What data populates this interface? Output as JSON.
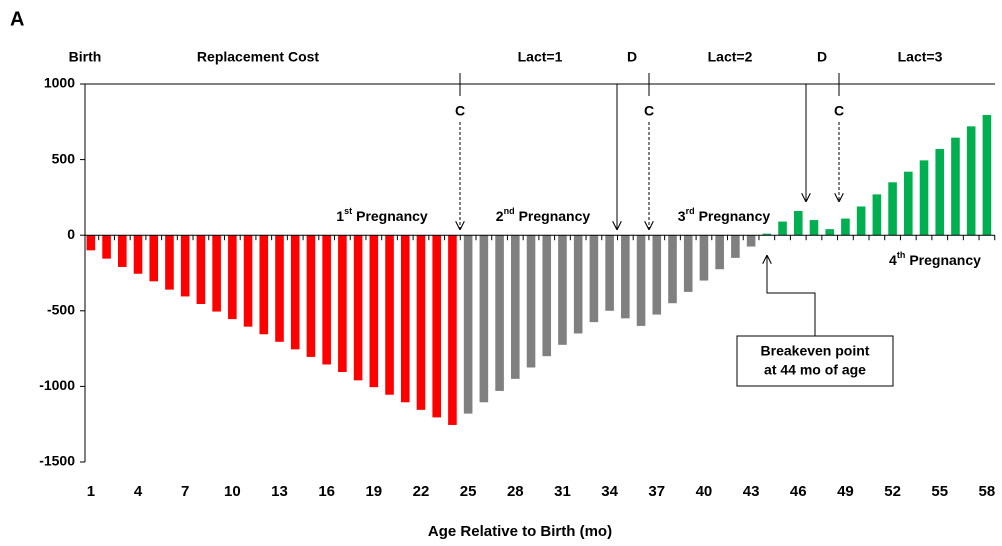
{
  "chart_data": {
    "type": "bar",
    "panel_label": "A",
    "xlabel": "Age Relative to Birth (mo)",
    "categories": [
      "1",
      null,
      null,
      "4",
      null,
      null,
      "7",
      null,
      null,
      "10",
      null,
      null,
      "13",
      null,
      null,
      "16",
      null,
      null,
      "19",
      null,
      null,
      "22",
      null,
      null,
      "25",
      null,
      null,
      "28",
      null,
      null,
      "31",
      null,
      null,
      "34",
      null,
      null,
      "37",
      null,
      null,
      "40",
      null,
      null,
      "43",
      null,
      null,
      "46",
      null,
      null,
      "49",
      null,
      null,
      "52",
      null,
      null,
      "55",
      null,
      null,
      "58"
    ],
    "series": [
      {
        "color": "#ff0000",
        "values": [
          -100,
          -155,
          -210,
          -255,
          -305,
          -360,
          -405,
          -455,
          -505,
          -555,
          -605,
          -655,
          -705,
          -755,
          -805,
          -855,
          -905,
          -960,
          -1005,
          -1055,
          -1105,
          -1155,
          -1205,
          -1255,
          null,
          null,
          null,
          null,
          null,
          null,
          null,
          null,
          null,
          null,
          null,
          null,
          null,
          null,
          null,
          null,
          null,
          null,
          null,
          null,
          null,
          null,
          null,
          null,
          null,
          null,
          null,
          null,
          null,
          null,
          null,
          null,
          null,
          null
        ]
      },
      {
        "color": "#808080",
        "values": [
          null,
          null,
          null,
          null,
          null,
          null,
          null,
          null,
          null,
          null,
          null,
          null,
          null,
          null,
          null,
          null,
          null,
          null,
          null,
          null,
          null,
          null,
          null,
          null,
          -1180,
          -1105,
          -1030,
          -950,
          -875,
          -800,
          -725,
          -650,
          -575,
          -500,
          -550,
          -600,
          -525,
          -450,
          -375,
          -300,
          -225,
          -150,
          -75,
          null,
          null,
          null,
          null,
          null,
          null,
          null,
          null,
          null,
          null,
          null,
          null,
          null,
          null,
          null
        ]
      },
      {
        "color": "#00b050",
        "values": [
          null,
          null,
          null,
          null,
          null,
          null,
          null,
          null,
          null,
          null,
          null,
          null,
          null,
          null,
          null,
          null,
          null,
          null,
          null,
          null,
          null,
          null,
          null,
          null,
          null,
          null,
          null,
          null,
          null,
          null,
          null,
          null,
          null,
          null,
          null,
          null,
          null,
          null,
          null,
          null,
          null,
          null,
          null,
          10,
          90,
          160,
          100,
          40,
          110,
          190,
          270,
          350,
          420,
          495,
          570,
          645,
          720,
          795
        ]
      }
    ],
    "ylim": [
      -1500,
      1000
    ],
    "yticks": [
      -1500,
      -1000,
      -500,
      0,
      500,
      1000
    ],
    "phase_labels": [
      "Birth",
      "Replacement Cost",
      "Lact=1",
      "D",
      "Lact=2",
      "D",
      "Lact=3"
    ],
    "calving_labels": [
      "C",
      "C",
      "C"
    ],
    "pregnancies": [
      {
        "number": "1",
        "suffix": "st",
        "text": "Pregnancy"
      },
      {
        "number": "2",
        "suffix": "nd",
        "text": "Pregnancy"
      },
      {
        "number": "3",
        "suffix": "rd",
        "text": "Pregnancy"
      },
      {
        "number": "4",
        "suffix": "th",
        "text": "Pregnancy"
      }
    ],
    "breakeven": [
      "Breakeven point",
      "at 44 mo of age"
    ]
  }
}
